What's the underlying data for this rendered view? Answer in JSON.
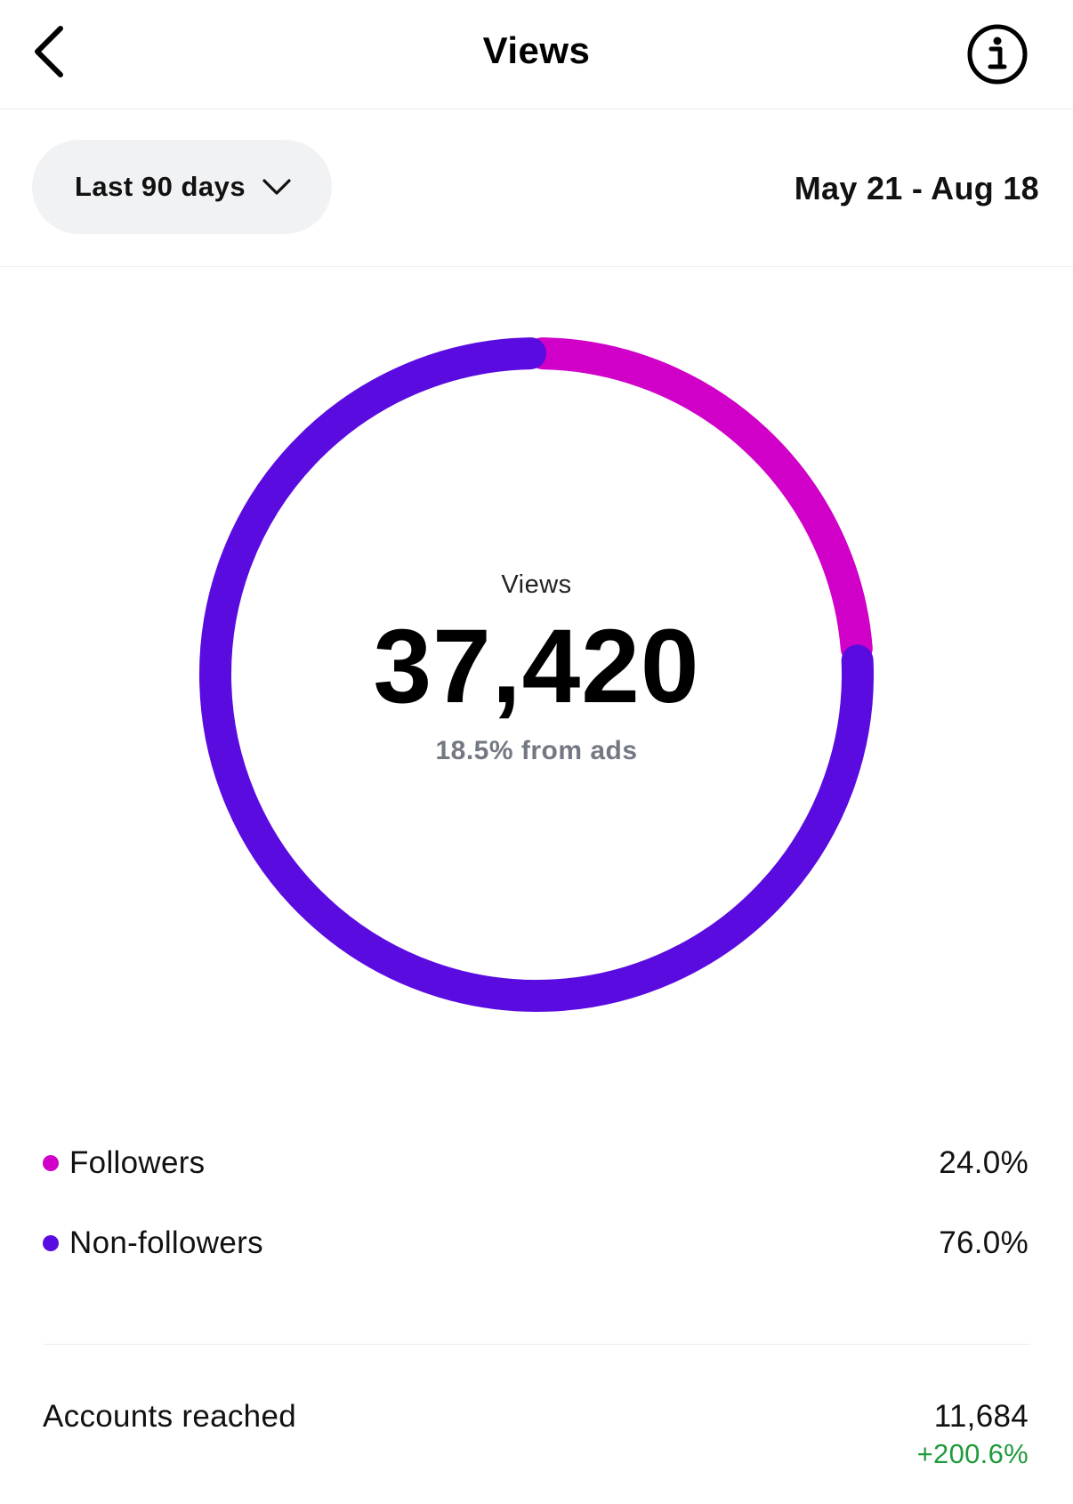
{
  "header": {
    "title": "Views",
    "back_icon": "chevron-left-icon",
    "info_icon": "info-circle-icon"
  },
  "filters": {
    "range_label": "Last 90 days",
    "range_icon": "chevron-down-icon",
    "date_range": "May 21 - Aug 18"
  },
  "summary": {
    "label": "Views",
    "value": "37,420",
    "sub": "18.5% from ads"
  },
  "colors": {
    "followers": "#d100c8",
    "non_followers": "#5a0be0",
    "positive": "#1f9a3c"
  },
  "chart_data": {
    "type": "pie",
    "categories": [
      "Followers",
      "Non-followers"
    ],
    "values": [
      24.0,
      76.0
    ]
  },
  "legend": [
    {
      "name": "Followers",
      "pct": "24.0%"
    },
    {
      "name": "Non-followers",
      "pct": "76.0%"
    }
  ],
  "metrics": {
    "accounts_reached": {
      "label": "Accounts reached",
      "value": "11,684",
      "change": "+200.6%"
    }
  }
}
